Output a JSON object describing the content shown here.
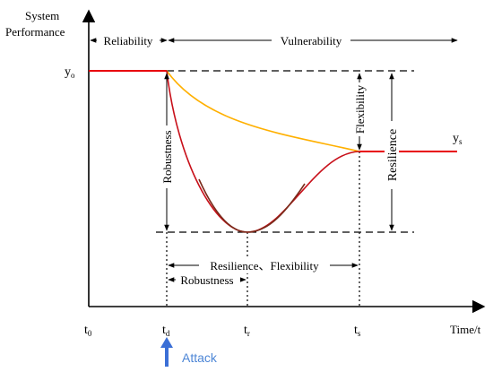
{
  "labels": {
    "y_axis_title_line1": "System",
    "y_axis_title_line2": "Performance",
    "x_axis_title": "Time/t",
    "y0_base": "y",
    "y0_sub": "o",
    "ys_base": "y",
    "ys_sub": "s",
    "t0_base": "t",
    "t0_sub": "0",
    "td_base": "t",
    "td_sub": "d",
    "tr_base": "t",
    "tr_sub": "r",
    "ts_base": "t",
    "ts_sub": "s",
    "reliability": "Reliability",
    "vulnerability": "Vulnerability",
    "robustness_vertical": "Robustness",
    "flexibility_vertical": "Flexibility",
    "resilience_vertical": "Resilience",
    "resilience_flexibility": "Resilience、Flexibility",
    "robustness_horizontal": "Robustness",
    "attack": "Attack"
  },
  "colors": {
    "baseline": "#e8000b",
    "recovery_curve": "#8b1a1a",
    "degradation_curve": "#ffb000",
    "attack_arrow": "#3b6fd6",
    "attack_text": "#4d86d6",
    "axis": "#000000"
  }
}
